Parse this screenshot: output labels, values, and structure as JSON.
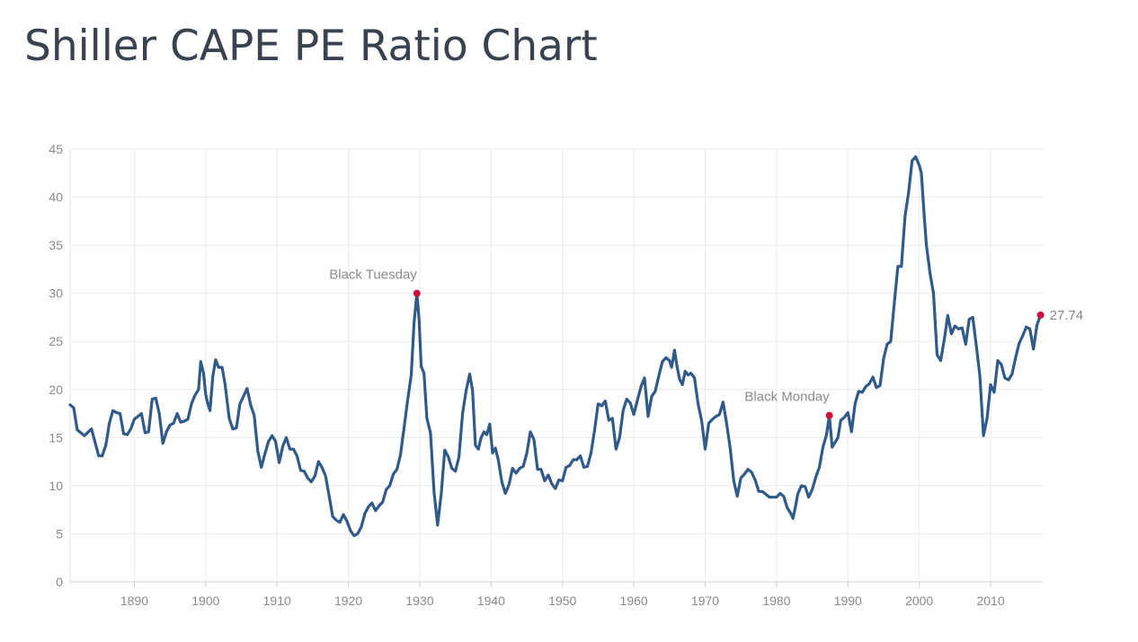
{
  "page": {
    "title": "Shiller CAPE PE Ratio Chart"
  },
  "chart_data": {
    "type": "line",
    "title": "Shiller CAPE PE Ratio Chart",
    "xlabel": "",
    "ylabel": "",
    "xlim": [
      1881,
      2017.3
    ],
    "ylim": [
      0,
      45
    ],
    "grid": true,
    "x_ticks": [
      1890,
      1900,
      1910,
      1920,
      1930,
      1940,
      1950,
      1960,
      1970,
      1980,
      1990,
      2000,
      2010
    ],
    "y_ticks": [
      0,
      5,
      10,
      15,
      20,
      25,
      30,
      35,
      40,
      45
    ],
    "line_color": "#2f5a8a",
    "marker_color": "#d0103a",
    "series": [
      {
        "name": "Shiller CAPE PE Ratio",
        "points": [
          [
            1881.0,
            18.4
          ],
          [
            1881.5,
            18.1
          ],
          [
            1882.0,
            15.8
          ],
          [
            1883.0,
            15.2
          ],
          [
            1884.0,
            15.9
          ],
          [
            1885.0,
            13.1
          ],
          [
            1885.5,
            13.1
          ],
          [
            1886.0,
            14.2
          ],
          [
            1886.5,
            16.5
          ],
          [
            1887.0,
            17.8
          ],
          [
            1887.5,
            17.6
          ],
          [
            1888.0,
            17.5
          ],
          [
            1888.5,
            15.4
          ],
          [
            1889.0,
            15.3
          ],
          [
            1889.5,
            15.9
          ],
          [
            1890.0,
            16.9
          ],
          [
            1890.5,
            17.2
          ],
          [
            1891.0,
            17.5
          ],
          [
            1891.5,
            15.5
          ],
          [
            1892.0,
            15.6
          ],
          [
            1892.5,
            19.0
          ],
          [
            1893.0,
            19.1
          ],
          [
            1893.5,
            17.5
          ],
          [
            1894.0,
            14.4
          ],
          [
            1894.5,
            15.6
          ],
          [
            1895.0,
            16.3
          ],
          [
            1895.5,
            16.5
          ],
          [
            1896.0,
            17.5
          ],
          [
            1896.5,
            16.6
          ],
          [
            1897.0,
            16.7
          ],
          [
            1897.5,
            16.9
          ],
          [
            1898.0,
            18.5
          ],
          [
            1898.5,
            19.4
          ],
          [
            1899.0,
            20.0
          ],
          [
            1899.3,
            22.9
          ],
          [
            1899.7,
            21.7
          ],
          [
            1900.0,
            19.5
          ],
          [
            1900.3,
            18.5
          ],
          [
            1900.6,
            17.8
          ],
          [
            1901.0,
            21.4
          ],
          [
            1901.4,
            23.1
          ],
          [
            1901.8,
            22.3
          ],
          [
            1902.3,
            22.3
          ],
          [
            1902.7,
            20.6
          ],
          [
            1903.3,
            17.0
          ],
          [
            1903.8,
            15.9
          ],
          [
            1904.3,
            16.0
          ],
          [
            1904.8,
            18.5
          ],
          [
            1905.3,
            19.3
          ],
          [
            1905.8,
            20.1
          ],
          [
            1906.3,
            18.4
          ],
          [
            1906.8,
            17.3
          ],
          [
            1907.3,
            13.6
          ],
          [
            1907.8,
            11.9
          ],
          [
            1908.3,
            13.3
          ],
          [
            1908.8,
            14.6
          ],
          [
            1909.3,
            15.2
          ],
          [
            1909.8,
            14.6
          ],
          [
            1910.3,
            12.4
          ],
          [
            1910.8,
            14.1
          ],
          [
            1911.3,
            15.0
          ],
          [
            1911.8,
            13.8
          ],
          [
            1912.3,
            13.8
          ],
          [
            1912.8,
            13.1
          ],
          [
            1913.3,
            11.6
          ],
          [
            1913.8,
            11.5
          ],
          [
            1914.3,
            10.8
          ],
          [
            1914.8,
            10.4
          ],
          [
            1915.3,
            11.0
          ],
          [
            1915.8,
            12.5
          ],
          [
            1916.3,
            11.9
          ],
          [
            1916.8,
            11.0
          ],
          [
            1917.3,
            8.9
          ],
          [
            1917.8,
            6.8
          ],
          [
            1918.3,
            6.4
          ],
          [
            1918.8,
            6.2
          ],
          [
            1919.3,
            7.0
          ],
          [
            1919.8,
            6.3
          ],
          [
            1920.3,
            5.3
          ],
          [
            1920.8,
            4.8
          ],
          [
            1921.3,
            5.0
          ],
          [
            1921.8,
            5.7
          ],
          [
            1922.3,
            7.1
          ],
          [
            1922.8,
            7.8
          ],
          [
            1923.3,
            8.2
          ],
          [
            1923.8,
            7.4
          ],
          [
            1924.3,
            7.9
          ],
          [
            1924.8,
            8.3
          ],
          [
            1925.3,
            9.6
          ],
          [
            1925.8,
            10.0
          ],
          [
            1926.3,
            11.2
          ],
          [
            1926.8,
            11.7
          ],
          [
            1927.3,
            13.2
          ],
          [
            1927.8,
            16.0
          ],
          [
            1928.3,
            18.9
          ],
          [
            1928.8,
            21.5
          ],
          [
            1929.2,
            26.9
          ],
          [
            1929.6,
            30.0
          ],
          [
            1929.9,
            27.3
          ],
          [
            1930.2,
            22.4
          ],
          [
            1930.6,
            21.7
          ],
          [
            1931.0,
            17.0
          ],
          [
            1931.5,
            15.5
          ],
          [
            1932.0,
            9.3
          ],
          [
            1932.5,
            5.9
          ],
          [
            1933.0,
            9.1
          ],
          [
            1933.5,
            13.7
          ],
          [
            1934.0,
            13.0
          ],
          [
            1934.5,
            11.8
          ],
          [
            1935.0,
            11.5
          ],
          [
            1935.5,
            13.0
          ],
          [
            1936.0,
            17.5
          ],
          [
            1936.5,
            19.9
          ],
          [
            1937.0,
            21.6
          ],
          [
            1937.4,
            19.9
          ],
          [
            1937.8,
            14.2
          ],
          [
            1938.2,
            13.8
          ],
          [
            1938.6,
            15.0
          ],
          [
            1939.0,
            15.6
          ],
          [
            1939.4,
            15.3
          ],
          [
            1939.8,
            16.4
          ],
          [
            1940.2,
            13.4
          ],
          [
            1940.6,
            13.9
          ],
          [
            1941.0,
            12.7
          ],
          [
            1941.5,
            10.4
          ],
          [
            1942.0,
            9.2
          ],
          [
            1942.5,
            10.1
          ],
          [
            1943.0,
            11.8
          ],
          [
            1943.5,
            11.3
          ],
          [
            1944.0,
            11.8
          ],
          [
            1944.5,
            12.0
          ],
          [
            1945.0,
            13.4
          ],
          [
            1945.5,
            15.6
          ],
          [
            1946.0,
            14.8
          ],
          [
            1946.5,
            11.7
          ],
          [
            1947.0,
            11.7
          ],
          [
            1947.5,
            10.5
          ],
          [
            1948.0,
            11.1
          ],
          [
            1948.5,
            10.2
          ],
          [
            1949.0,
            9.7
          ],
          [
            1949.5,
            10.6
          ],
          [
            1950.0,
            10.5
          ],
          [
            1950.5,
            11.9
          ],
          [
            1951.0,
            12.1
          ],
          [
            1951.5,
            12.7
          ],
          [
            1952.0,
            12.7
          ],
          [
            1952.5,
            13.1
          ],
          [
            1953.0,
            11.9
          ],
          [
            1953.5,
            12.0
          ],
          [
            1954.0,
            13.4
          ],
          [
            1954.5,
            15.8
          ],
          [
            1955.0,
            18.5
          ],
          [
            1955.5,
            18.3
          ],
          [
            1956.0,
            18.8
          ],
          [
            1956.5,
            16.8
          ],
          [
            1957.0,
            17.0
          ],
          [
            1957.5,
            13.8
          ],
          [
            1958.0,
            15.0
          ],
          [
            1958.5,
            17.8
          ],
          [
            1959.0,
            19.0
          ],
          [
            1959.5,
            18.6
          ],
          [
            1960.0,
            17.4
          ],
          [
            1960.5,
            18.9
          ],
          [
            1961.0,
            20.3
          ],
          [
            1961.5,
            21.2
          ],
          [
            1962.0,
            17.2
          ],
          [
            1962.5,
            19.3
          ],
          [
            1963.0,
            19.8
          ],
          [
            1963.5,
            21.4
          ],
          [
            1964.0,
            22.9
          ],
          [
            1964.5,
            23.3
          ],
          [
            1965.0,
            23.0
          ],
          [
            1965.3,
            22.3
          ],
          [
            1965.7,
            24.1
          ],
          [
            1966.0,
            22.6
          ],
          [
            1966.4,
            21.1
          ],
          [
            1966.8,
            20.5
          ],
          [
            1967.2,
            21.9
          ],
          [
            1967.6,
            21.5
          ],
          [
            1968.0,
            21.7
          ],
          [
            1968.5,
            21.2
          ],
          [
            1969.0,
            18.5
          ],
          [
            1969.5,
            16.8
          ],
          [
            1970.0,
            13.8
          ],
          [
            1970.5,
            16.5
          ],
          [
            1971.0,
            16.9
          ],
          [
            1971.5,
            17.2
          ],
          [
            1972.0,
            17.4
          ],
          [
            1972.5,
            18.7
          ],
          [
            1973.0,
            16.5
          ],
          [
            1973.5,
            13.9
          ],
          [
            1974.0,
            10.5
          ],
          [
            1974.5,
            8.9
          ],
          [
            1975.0,
            10.8
          ],
          [
            1975.5,
            11.2
          ],
          [
            1976.0,
            11.7
          ],
          [
            1976.5,
            11.4
          ],
          [
            1977.0,
            10.6
          ],
          [
            1977.5,
            9.4
          ],
          [
            1978.0,
            9.4
          ],
          [
            1978.5,
            9.1
          ],
          [
            1979.0,
            8.8
          ],
          [
            1979.5,
            8.8
          ],
          [
            1980.0,
            8.8
          ],
          [
            1980.5,
            9.2
          ],
          [
            1981.0,
            8.9
          ],
          [
            1981.5,
            7.7
          ],
          [
            1982.0,
            7.1
          ],
          [
            1982.3,
            6.6
          ],
          [
            1982.7,
            8.0
          ],
          [
            1983.0,
            9.2
          ],
          [
            1983.5,
            10.0
          ],
          [
            1984.0,
            9.9
          ],
          [
            1984.5,
            8.8
          ],
          [
            1985.0,
            9.6
          ],
          [
            1985.5,
            10.9
          ],
          [
            1986.0,
            11.9
          ],
          [
            1986.5,
            14.0
          ],
          [
            1987.0,
            15.3
          ],
          [
            1987.4,
            17.3
          ],
          [
            1987.8,
            14.0
          ],
          [
            1988.2,
            14.5
          ],
          [
            1988.6,
            15.0
          ],
          [
            1989.0,
            16.8
          ],
          [
            1989.5,
            17.1
          ],
          [
            1990.0,
            17.6
          ],
          [
            1990.5,
            15.6
          ],
          [
            1991.0,
            18.5
          ],
          [
            1991.5,
            19.8
          ],
          [
            1992.0,
            19.7
          ],
          [
            1992.5,
            20.3
          ],
          [
            1993.0,
            20.6
          ],
          [
            1993.5,
            21.3
          ],
          [
            1994.0,
            20.2
          ],
          [
            1994.5,
            20.4
          ],
          [
            1995.0,
            23.2
          ],
          [
            1995.5,
            24.7
          ],
          [
            1996.0,
            25.0
          ],
          [
            1996.5,
            29.0
          ],
          [
            1997.0,
            32.8
          ],
          [
            1997.5,
            32.8
          ],
          [
            1998.0,
            38.0
          ],
          [
            1998.5,
            40.5
          ],
          [
            1999.0,
            43.8
          ],
          [
            1999.5,
            44.2
          ],
          [
            2000.0,
            43.3
          ],
          [
            2000.3,
            42.5
          ],
          [
            2000.7,
            38.0
          ],
          [
            2001.0,
            35.0
          ],
          [
            2001.5,
            32.1
          ],
          [
            2002.0,
            30.0
          ],
          [
            2002.5,
            23.6
          ],
          [
            2003.0,
            23.0
          ],
          [
            2003.5,
            25.2
          ],
          [
            2004.0,
            27.7
          ],
          [
            2004.5,
            25.8
          ],
          [
            2005.0,
            26.6
          ],
          [
            2005.5,
            26.3
          ],
          [
            2006.0,
            26.4
          ],
          [
            2006.5,
            24.7
          ],
          [
            2007.0,
            27.3
          ],
          [
            2007.5,
            27.5
          ],
          [
            2008.0,
            24.5
          ],
          [
            2008.5,
            21.4
          ],
          [
            2009.0,
            15.2
          ],
          [
            2009.5,
            17.0
          ],
          [
            2010.0,
            20.5
          ],
          [
            2010.5,
            19.7
          ],
          [
            2011.0,
            23.0
          ],
          [
            2011.5,
            22.6
          ],
          [
            2012.0,
            21.2
          ],
          [
            2012.5,
            21.0
          ],
          [
            2013.0,
            21.6
          ],
          [
            2013.5,
            23.3
          ],
          [
            2014.0,
            24.8
          ],
          [
            2014.5,
            25.6
          ],
          [
            2015.0,
            26.5
          ],
          [
            2015.5,
            26.3
          ],
          [
            2016.0,
            24.2
          ],
          [
            2016.5,
            26.7
          ],
          [
            2017.0,
            27.74
          ]
        ]
      }
    ],
    "annotations": [
      {
        "label": "Black Tuesday",
        "x": 1929.6,
        "y": 30.0,
        "anchor": "above-left"
      },
      {
        "label": "Black Monday",
        "x": 1987.4,
        "y": 17.3,
        "anchor": "above-left"
      },
      {
        "label": "27.74",
        "x": 2017.0,
        "y": 27.74,
        "anchor": "right"
      }
    ]
  }
}
